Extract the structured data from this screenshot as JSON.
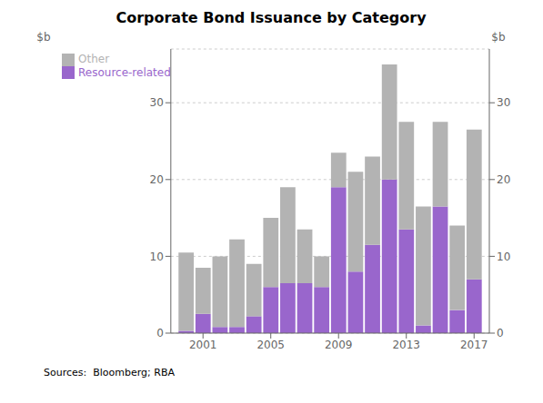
{
  "chart_data": {
    "type": "bar",
    "title": "Corporate Bond Issuance by Category",
    "x": [
      2000,
      2001,
      2002,
      2003,
      2004,
      2005,
      2006,
      2007,
      2008,
      2009,
      2010,
      2011,
      2012,
      2013,
      2014,
      2015,
      2016,
      2017
    ],
    "series": [
      {
        "name": "Resource-related",
        "color": "#9966cc",
        "values": [
          0.3,
          2.5,
          0.8,
          0.8,
          2.2,
          6.0,
          6.5,
          6.5,
          6.0,
          19.0,
          8.0,
          11.5,
          20.0,
          13.5,
          1.0,
          16.5,
          3.0,
          7.0
        ]
      },
      {
        "name": "Other",
        "color": "#b3b3b3",
        "values": [
          10.2,
          6.0,
          9.2,
          11.4,
          6.8,
          9.0,
          12.5,
          7.0,
          4.0,
          4.5,
          13.0,
          11.5,
          15.0,
          14.0,
          15.5,
          11.0,
          11.0,
          19.5
        ]
      }
    ],
    "stacked": true,
    "xlim": [
      1999.1,
      2017.9
    ],
    "xticks": [
      2001,
      2005,
      2009,
      2013,
      2017
    ],
    "ylim": [
      0,
      37
    ],
    "yticks": [
      0,
      10,
      20,
      30
    ],
    "y2lim": [
      0,
      37
    ],
    "y2ticks": [
      0,
      10,
      20,
      30
    ],
    "ylabel": "$b",
    "y2label": "$b",
    "source": "Sources:  Bloomberg; RBA",
    "grid": "y",
    "legend": "upper left"
  }
}
